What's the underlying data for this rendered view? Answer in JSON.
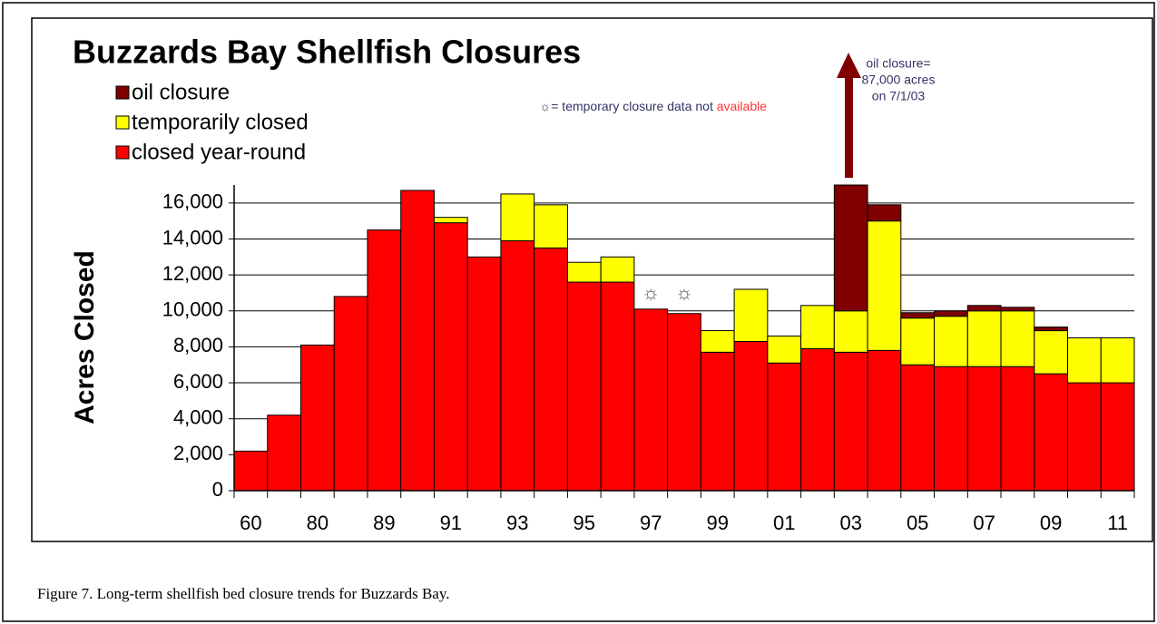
{
  "chart_data": {
    "type": "stacked_bar",
    "title": "Buzzards Bay Shellfish Closures",
    "y_axis_label": "Acres Closed",
    "caption": "Figure 7.  Long-term shellfish bed closure trends for Buzzards Bay.",
    "annotations": {
      "legend_note": "☼= temporary closure data not ",
      "legend_note_highlight": "available",
      "markers": [
        {
          "category_index": 12,
          "text": "☼"
        },
        {
          "category_index": 13,
          "text": "☼"
        }
      ],
      "oil_note": [
        "oil closure=",
        "87,000 acres",
        "on 7/1/03"
      ]
    },
    "categories": [
      "60",
      null,
      "80",
      null,
      "89",
      null,
      "91",
      null,
      "93",
      null,
      "95",
      null,
      "97",
      null,
      "99",
      null,
      "01",
      null,
      "03",
      null,
      "05",
      null,
      "07",
      null,
      "09",
      null,
      "11"
    ],
    "series": [
      {
        "name": "closed year-round",
        "color": "#ff0000",
        "values": [
          2200,
          4200,
          8100,
          10800,
          14500,
          16700,
          14900,
          13000,
          13900,
          13500,
          11600,
          11600,
          10100,
          9850,
          7700,
          8300,
          7100,
          7900,
          7700,
          7800,
          7000,
          6900,
          6900,
          6900,
          6500,
          6000,
          6000
        ]
      },
      {
        "name": "temporarily closed",
        "color": "#ffff00",
        "values": [
          0,
          0,
          0,
          0,
          0,
          0,
          300,
          0,
          2600,
          2400,
          1100,
          1400,
          0,
          0,
          1200,
          2900,
          1500,
          2400,
          2300,
          7200,
          2600,
          2800,
          3100,
          3100,
          2400,
          2500,
          2500
        ]
      },
      {
        "name": "oil closure",
        "color": "#800000",
        "values": [
          0,
          0,
          0,
          0,
          0,
          0,
          0,
          0,
          0,
          0,
          0,
          0,
          0,
          0,
          0,
          0,
          0,
          0,
          7000,
          900,
          300,
          300,
          300,
          200,
          200,
          0,
          0
        ]
      }
    ],
    "ylim": [
      0,
      17000
    ],
    "yticks": [
      0,
      {
        "value": 2000,
        "label": "2,000"
      },
      {
        "value": 4000,
        "label": "4,000"
      },
      {
        "value": 6000,
        "label": "6,000"
      },
      {
        "value": 8000,
        "label": "8,000"
      },
      {
        "value": 10000,
        "label": "10,000"
      },
      {
        "value": 12000,
        "label": "12,000"
      },
      {
        "value": 14000,
        "label": "14,000"
      },
      {
        "value": 16000,
        "label": "16,000"
      }
    ],
    "grid": true,
    "legend": "top-left"
  }
}
